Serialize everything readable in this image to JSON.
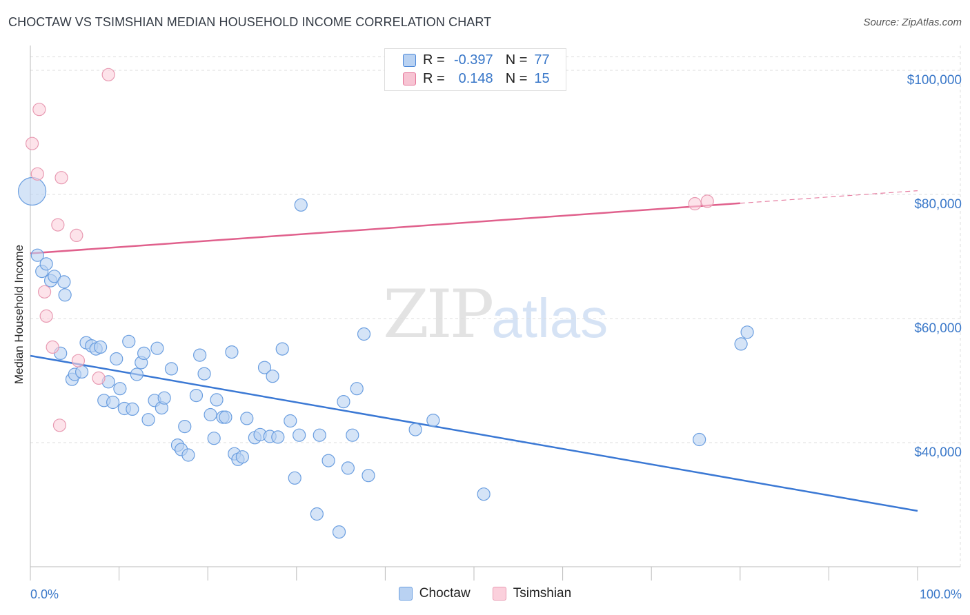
{
  "title": "CHOCTAW VS TSIMSHIAN MEDIAN HOUSEHOLD INCOME CORRELATION CHART",
  "source": "Source: ZipAtlas.com",
  "watermark": {
    "zip": "ZIP",
    "atlas": "atlas"
  },
  "legend": {
    "r_label": "R =",
    "n_label": "N =",
    "rows": [
      {
        "r": "-0.397",
        "n": "77",
        "color": "#4a86d8",
        "fill": "#b9d2f2"
      },
      {
        "r": "0.148",
        "n": "15",
        "color": "#e57498",
        "fill": "#f7c4d3"
      }
    ]
  },
  "bottom_legend": [
    {
      "label": "Choctaw",
      "fill": "#b9d2f2",
      "stroke": "#6a9ee0"
    },
    {
      "label": "Tsimshian",
      "fill": "#fbd0dc",
      "stroke": "#e89ab2"
    }
  ],
  "chart_data": {
    "type": "scatter",
    "title": "CHOCTAW VS TSIMSHIAN MEDIAN HOUSEHOLD INCOME CORRELATION CHART",
    "xlabel": "",
    "ylabel": "Median Household Income",
    "xlim": [
      0,
      100
    ],
    "ylim": [
      20000,
      104000
    ],
    "x_tick_labels": [
      "0.0%",
      "100.0%"
    ],
    "y_ticks": [
      40000,
      60000,
      80000,
      100000
    ],
    "y_tick_labels": [
      "$40,000",
      "$60,000",
      "$80,000",
      "$100,000"
    ],
    "grid": true,
    "series": [
      {
        "name": "Choctaw",
        "color": "#6a9ee0",
        "fill": "#b9d2f2",
        "points": [
          [
            0.2,
            80500
          ],
          [
            0.8,
            70200
          ],
          [
            1.3,
            67600
          ],
          [
            1.8,
            68800
          ],
          [
            2.3,
            66100
          ],
          [
            2.7,
            66800
          ],
          [
            3.8,
            65900
          ],
          [
            3.9,
            63800
          ],
          [
            3.4,
            54400
          ],
          [
            4.7,
            50200
          ],
          [
            5.0,
            51000
          ],
          [
            5.8,
            51400
          ],
          [
            6.3,
            56100
          ],
          [
            6.9,
            55600
          ],
          [
            7.4,
            55100
          ],
          [
            7.9,
            55400
          ],
          [
            8.3,
            46800
          ],
          [
            8.8,
            49800
          ],
          [
            9.3,
            46500
          ],
          [
            9.7,
            53500
          ],
          [
            10.1,
            48700
          ],
          [
            10.6,
            45500
          ],
          [
            11.1,
            56300
          ],
          [
            11.5,
            45400
          ],
          [
            12.0,
            51000
          ],
          [
            12.5,
            52900
          ],
          [
            12.8,
            54400
          ],
          [
            13.3,
            43700
          ],
          [
            14.0,
            46800
          ],
          [
            14.3,
            55200
          ],
          [
            14.8,
            45600
          ],
          [
            15.1,
            47200
          ],
          [
            15.9,
            51900
          ],
          [
            16.6,
            39600
          ],
          [
            17.0,
            38900
          ],
          [
            17.4,
            42600
          ],
          [
            17.8,
            38000
          ],
          [
            18.7,
            47600
          ],
          [
            19.1,
            54100
          ],
          [
            19.6,
            51100
          ],
          [
            20.3,
            44500
          ],
          [
            20.7,
            40700
          ],
          [
            21.0,
            46900
          ],
          [
            21.7,
            44100
          ],
          [
            22.0,
            44100
          ],
          [
            22.7,
            54600
          ],
          [
            23.0,
            38200
          ],
          [
            23.4,
            37300
          ],
          [
            23.9,
            37700
          ],
          [
            24.4,
            43900
          ],
          [
            25.3,
            40800
          ],
          [
            25.9,
            41300
          ],
          [
            26.4,
            52100
          ],
          [
            27.0,
            41000
          ],
          [
            27.3,
            50700
          ],
          [
            27.9,
            40900
          ],
          [
            28.4,
            55100
          ],
          [
            29.3,
            43500
          ],
          [
            29.8,
            34300
          ],
          [
            30.3,
            41200
          ],
          [
            30.5,
            78300
          ],
          [
            32.3,
            28500
          ],
          [
            32.6,
            41200
          ],
          [
            33.6,
            37100
          ],
          [
            34.8,
            25600
          ],
          [
            35.3,
            46600
          ],
          [
            35.8,
            35900
          ],
          [
            36.3,
            41200
          ],
          [
            36.8,
            48700
          ],
          [
            37.6,
            57500
          ],
          [
            38.1,
            34700
          ],
          [
            43.4,
            42100
          ],
          [
            45.4,
            43600
          ],
          [
            51.1,
            31700
          ],
          [
            75.4,
            40500
          ],
          [
            80.1,
            55900
          ],
          [
            80.8,
            57800
          ]
        ]
      },
      {
        "name": "Tsimshian",
        "color": "#e89ab2",
        "fill": "#fbd0dc",
        "points": [
          [
            0.2,
            88200
          ],
          [
            0.8,
            83300
          ],
          [
            1.0,
            93700
          ],
          [
            1.6,
            64300
          ],
          [
            1.8,
            60400
          ],
          [
            2.5,
            55400
          ],
          [
            3.1,
            75100
          ],
          [
            3.3,
            42800
          ],
          [
            3.5,
            82700
          ],
          [
            5.2,
            73400
          ],
          [
            5.4,
            53200
          ],
          [
            7.7,
            50400
          ],
          [
            8.8,
            99300
          ],
          [
            74.9,
            78500
          ],
          [
            76.3,
            78900
          ]
        ]
      }
    ],
    "trend_lines": [
      {
        "series": "Choctaw",
        "color": "#3a78d4",
        "x0": 0,
        "y0": 54000,
        "x1": 100,
        "y1": 29000,
        "dash_from": null
      },
      {
        "series": "Tsimshian",
        "color": "#e0608c",
        "x0": 0,
        "y0": 70500,
        "x1": 100,
        "y1": 80600,
        "dash_from": 80
      }
    ]
  }
}
